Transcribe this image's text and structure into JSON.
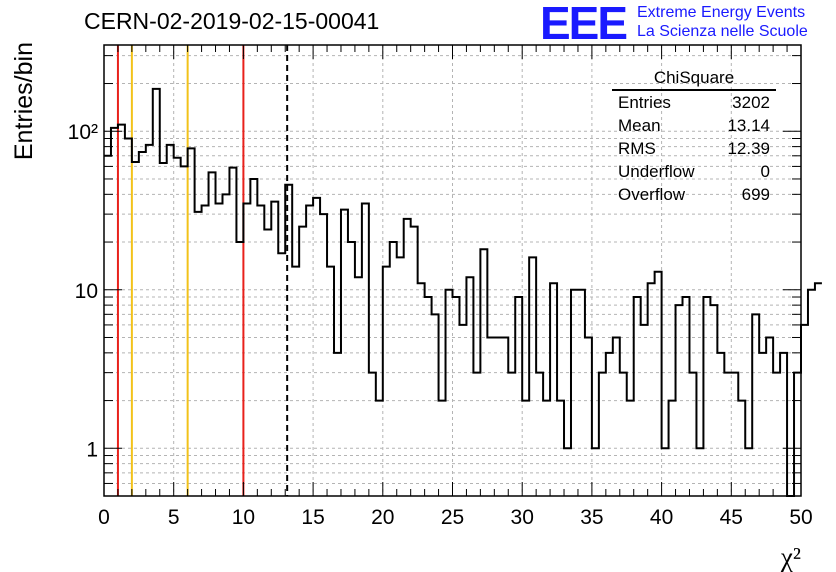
{
  "header": {
    "title": "CERN-02-2019-02-15-00041",
    "logo_text": "EEE",
    "logo_line1": "Extreme Energy Events",
    "logo_line2": "La Scienza nelle Scuole",
    "logo_color": "#1a1aff"
  },
  "stats": {
    "title": "ChiSquare",
    "rows": [
      {
        "label": "Entries",
        "value": "3202"
      },
      {
        "label": "Mean",
        "value": "13.14"
      },
      {
        "label": "RMS",
        "value": "12.39"
      },
      {
        "label": "Underflow",
        "value": "0"
      },
      {
        "label": "Overflow",
        "value": "699"
      }
    ]
  },
  "chart_data": {
    "type": "histogram",
    "ylabel": "Entries/bin",
    "xlabel": "χ²",
    "xlim": [
      0,
      50
    ],
    "ylim": [
      0.5,
      350
    ],
    "log_y": true,
    "grid": true,
    "bin_width": 0.5,
    "x_ticks": [
      "0",
      "5",
      "10",
      "15",
      "20",
      "25",
      "30",
      "35",
      "40",
      "45",
      "50"
    ],
    "y_ticks": [
      {
        "value": 1,
        "label": "1"
      },
      {
        "value": 10,
        "label": "10"
      },
      {
        "value": 100,
        "label": "10²"
      }
    ],
    "bin_counts": [
      70,
      105,
      110,
      90,
      64,
      74,
      82,
      185,
      63,
      82,
      68,
      60,
      78,
      31,
      34,
      55,
      35,
      40,
      59,
      20,
      35,
      50,
      34,
      24,
      36,
      17,
      46,
      14,
      25,
      34,
      38,
      30,
      14,
      4,
      32,
      20,
      12,
      35,
      3,
      2,
      14,
      20,
      16,
      28,
      25,
      11,
      9,
      7,
      2,
      10,
      9,
      6,
      12,
      3,
      18,
      5,
      5,
      5,
      3,
      9,
      2,
      16,
      3,
      2,
      11,
      2,
      1,
      10,
      10,
      5,
      1,
      3,
      4,
      5,
      3,
      2,
      9,
      6,
      11,
      13,
      1,
      2,
      8,
      9,
      3,
      1,
      9,
      8,
      4,
      3,
      3,
      2,
      1,
      7,
      4,
      5,
      3,
      4,
      0.4,
      3,
      6,
      10,
      11
    ],
    "vertical_lines": [
      {
        "x": 1,
        "color": "#e8211b",
        "style": "solid"
      },
      {
        "x": 2,
        "color": "#f2c21a",
        "style": "solid"
      },
      {
        "x": 6,
        "color": "#f2c21a",
        "style": "solid"
      },
      {
        "x": 10,
        "color": "#e8211b",
        "style": "solid"
      },
      {
        "x": 13.14,
        "color": "#000000",
        "style": "dashed"
      }
    ]
  }
}
